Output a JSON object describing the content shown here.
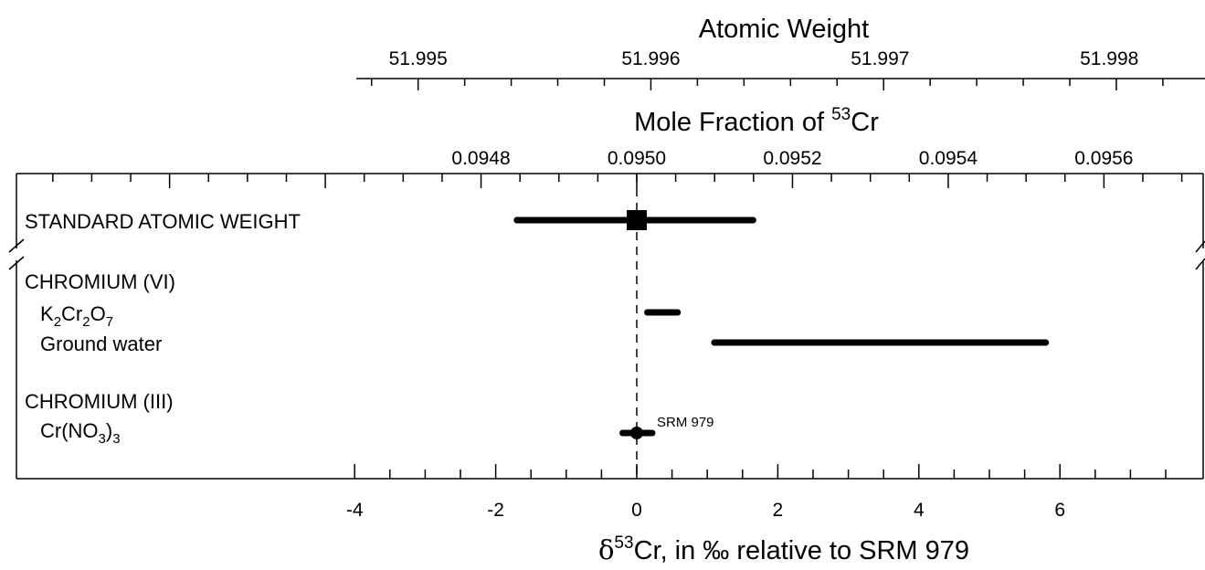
{
  "chart_data": {
    "type": "interval",
    "bottom_axis": {
      "title_delta": "δ",
      "title_sup": "53",
      "title_rest": "Cr, in ‰ relative to SRM 979",
      "ticks": [
        -4,
        -2,
        0,
        2,
        4,
        6
      ],
      "tick_labels": [
        "-4",
        "-2",
        "0",
        "2",
        "4",
        "6"
      ],
      "range": [
        -4,
        8
      ]
    },
    "mole_fraction_axis": {
      "title_pre": "Mole Fraction of ",
      "title_sup": "53",
      "title_post": "Cr",
      "tick_labels": [
        "0.0948",
        "0.0950",
        "0.0952",
        "0.0954",
        "0.0956"
      ],
      "tick_delta": [
        -2.208,
        0,
        2.208,
        4.416,
        6.624
      ]
    },
    "atomic_weight_axis": {
      "title": "Atomic Weight",
      "tick_labels": [
        "51.995",
        "51.996",
        "51.997",
        "51.998"
      ],
      "tick_delta": [
        -3.1,
        0.2,
        3.45,
        6.7
      ]
    },
    "labels": {
      "standard": "STANDARD ATOMIC WEIGHT",
      "chromium_vi": "CHROMIUM (VI)",
      "k2cr2o7": {
        "p1": "K",
        "s1": "2",
        "p2": "Cr",
        "s2": "2",
        "p3": "O",
        "s3": "7"
      },
      "ground_water": "Ground water",
      "chromium_iii": "CHROMIUM (III)",
      "crno3": {
        "p1": "Cr(NO",
        "s1": "3",
        "p2": ")",
        "s2": "3"
      },
      "srm_note": "SRM 979"
    },
    "series": [
      {
        "key": "standard",
        "min": -1.7,
        "max": 1.65,
        "marker": "square",
        "marker_at": 0
      },
      {
        "key": "k2cr2o7",
        "min": 0.15,
        "max": 0.58
      },
      {
        "key": "ground_water",
        "min": 1.1,
        "max": 5.8
      },
      {
        "key": "crno3",
        "min": -0.2,
        "max": 0.22,
        "marker": "circle",
        "marker_at": 0
      }
    ],
    "reference_line": 0
  }
}
